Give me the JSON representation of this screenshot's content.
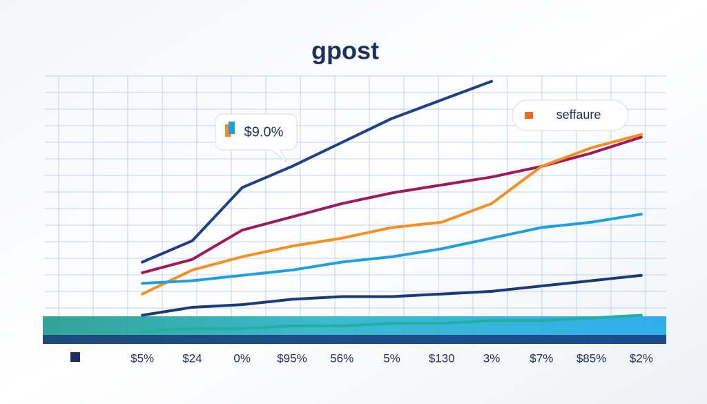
{
  "chart_data": {
    "type": "line",
    "title": "gpost",
    "annotations": [
      "$9.0%",
      "seffaure"
    ],
    "categories": [
      "$5%",
      "$24",
      "0%",
      "$95%",
      "56%",
      "5%",
      "$130",
      "3%",
      "$7%",
      "$85%",
      "$2%"
    ],
    "ylim": [
      0,
      100
    ],
    "series": [
      {
        "color": "#1f3f8a",
        "values": [
          30,
          38,
          58,
          66,
          75,
          84,
          91,
          98,
          null,
          null,
          null
        ]
      },
      {
        "color": "#a0195a",
        "values": [
          26,
          31,
          42,
          47,
          52,
          56,
          59,
          62,
          66,
          71,
          77
        ]
      },
      {
        "color": "#f5901e",
        "values": [
          18,
          27,
          32,
          36,
          39,
          43,
          45,
          52,
          66,
          73,
          78
        ]
      },
      {
        "color": "#1ea0e0",
        "values": [
          22,
          23,
          25,
          27,
          30,
          32,
          35,
          39,
          43,
          45,
          48
        ]
      },
      {
        "color": "#1a3a7a",
        "values": [
          10,
          13,
          14,
          16,
          17,
          17,
          18,
          19,
          21,
          23,
          25
        ]
      },
      {
        "color": "#1fb0a0",
        "values": [
          4,
          5,
          5,
          6,
          6,
          7,
          7,
          8,
          8,
          9,
          10
        ]
      }
    ]
  }
}
